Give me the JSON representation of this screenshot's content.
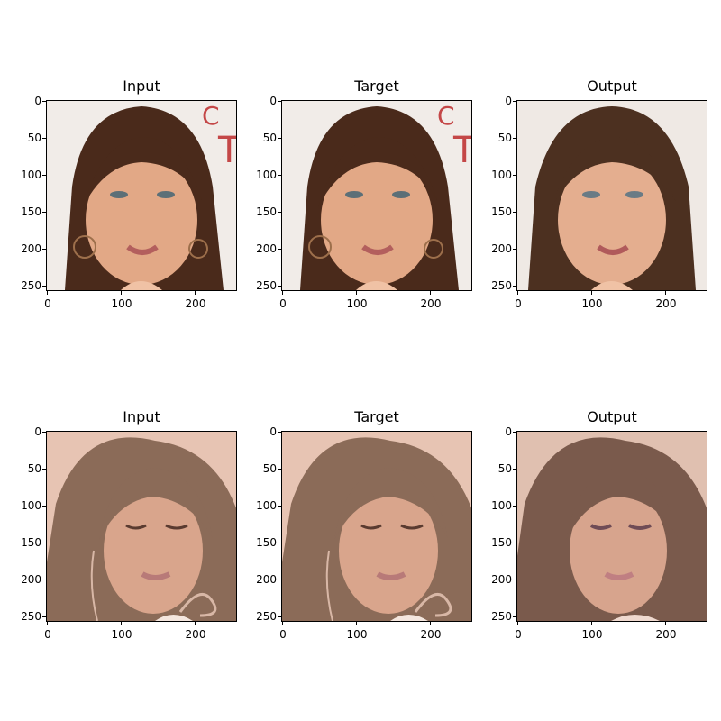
{
  "panels": [
    {
      "title": "Input",
      "face": "face-brunette",
      "variant": "sharp"
    },
    {
      "title": "Target",
      "face": "face-brunette",
      "variant": "sharp"
    },
    {
      "title": "Output",
      "face": "face-brunette",
      "variant": "smooth"
    },
    {
      "title": "Input",
      "face": "face-blonde",
      "variant": "sharp"
    },
    {
      "title": "Target",
      "face": "face-blonde",
      "variant": "sharp"
    },
    {
      "title": "Output",
      "face": "face-blonde",
      "variant": "smooth"
    }
  ],
  "axes": {
    "yticks": [
      "0",
      "50",
      "100",
      "150",
      "200",
      "250"
    ],
    "xticks": [
      "0",
      "100",
      "200"
    ]
  },
  "colors": {
    "row1_bg": "#f1ece8",
    "row1_hair": "#4a2a1b",
    "row1_skin": "#e2a886",
    "row2_bg": "#e7c4b3",
    "row2_hair": "#8b6b58",
    "row2_skin": "#d9a58c"
  }
}
